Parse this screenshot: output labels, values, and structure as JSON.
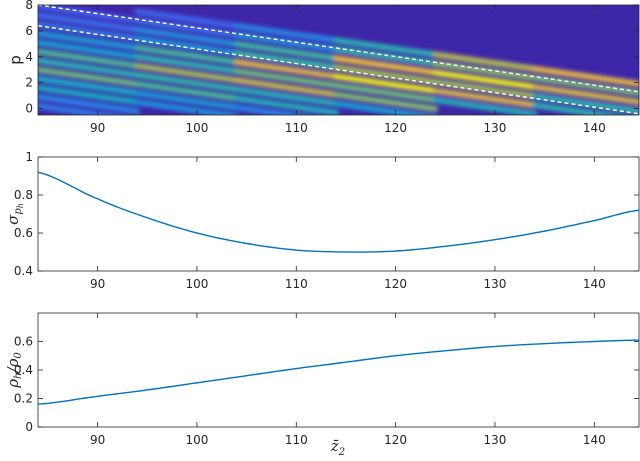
{
  "colors": {
    "line": "#0072bd",
    "axis": "#262626",
    "background": "#ffffff",
    "heatmap_low": "#3e26a8",
    "heatmap_high": "#f9fb0e",
    "dashed": "#ffffff"
  },
  "chart_data": [
    {
      "type": "heatmap",
      "ylabel": "p",
      "xlim": [
        84,
        144.5
      ],
      "ylim": [
        -0.5,
        8
      ],
      "xticks": [
        "90",
        "100",
        "110",
        "120",
        "130",
        "140"
      ],
      "yticks": [
        "0",
        "2",
        "4",
        "6",
        "8"
      ],
      "colormap": "parula",
      "dashed_lines": [
        {
          "x": [
            84,
            144.5
          ],
          "y": [
            8.0,
            1.3
          ]
        },
        {
          "x": [
            84,
            144.5
          ],
          "y": [
            6.4,
            -0.4
          ]
        }
      ]
    },
    {
      "type": "line",
      "ylabel": "σ_{p_h}",
      "xlim": [
        84,
        144.5
      ],
      "ylim": [
        0.4,
        1.0
      ],
      "xticks": [
        "90",
        "100",
        "110",
        "120",
        "130",
        "140"
      ],
      "yticks": [
        "0.4",
        "0.6",
        "0.8",
        "1"
      ],
      "series": [
        {
          "x": [
            84,
            90,
            95,
            100,
            105,
            110,
            115,
            120,
            125,
            130,
            135,
            140,
            144.5
          ],
          "y": [
            0.92,
            0.78,
            0.68,
            0.6,
            0.545,
            0.51,
            0.5,
            0.505,
            0.53,
            0.565,
            0.61,
            0.665,
            0.72
          ]
        }
      ]
    },
    {
      "type": "line",
      "ylabel": "ρ_h/ρ_0",
      "xlabel": "z̄_2",
      "xlim": [
        84,
        144.5
      ],
      "ylim": [
        0,
        0.8
      ],
      "xticks": [
        "90",
        "100",
        "110",
        "120",
        "130",
        "140"
      ],
      "yticks": [
        "0",
        "0.2",
        "0.4",
        "0.6"
      ],
      "series": [
        {
          "x": [
            84,
            90,
            95,
            100,
            105,
            110,
            115,
            120,
            125,
            130,
            135,
            140,
            144.5
          ],
          "y": [
            0.16,
            0.215,
            0.26,
            0.31,
            0.36,
            0.41,
            0.455,
            0.5,
            0.535,
            0.565,
            0.585,
            0.6,
            0.61
          ]
        }
      ]
    }
  ]
}
